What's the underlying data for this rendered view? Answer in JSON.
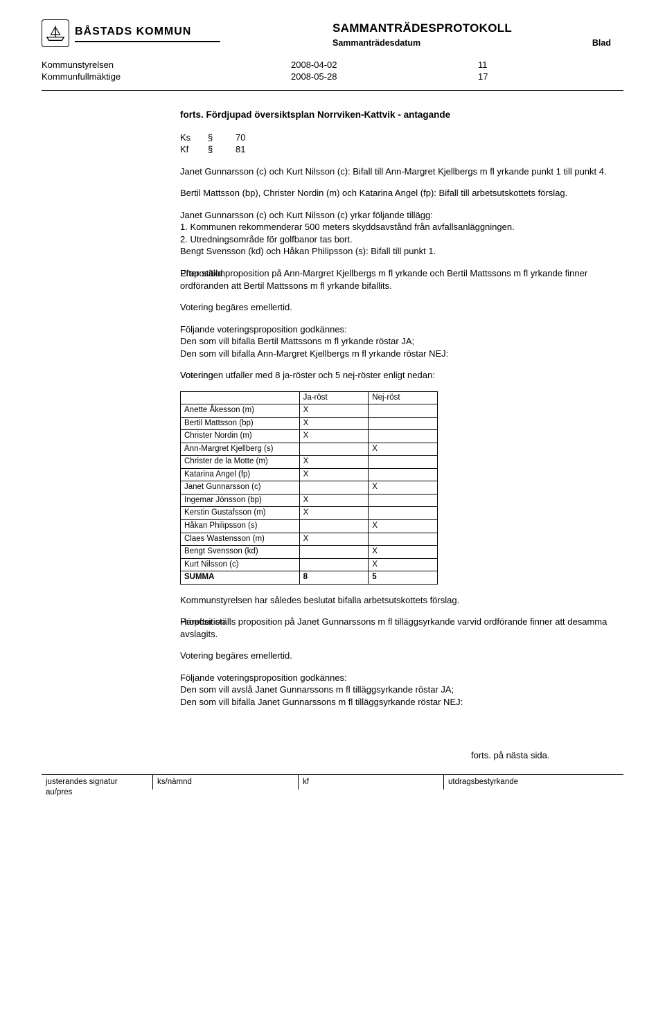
{
  "header": {
    "kommun": "BÅSTADS KOMMUN",
    "protokoll_title": "SAMMANTRÄDESPROTOKOLL",
    "sub_left": "Sammanträdesdatum",
    "sub_right": "Blad"
  },
  "meta": {
    "rows": [
      {
        "left": "Kommunstyrelsen",
        "mid": "2008-04-02",
        "right": "11"
      },
      {
        "left": "Kommunfullmäktige",
        "mid": "2008-05-28",
        "right": "17"
      }
    ]
  },
  "doc": {
    "title": "forts. Fördjupad översiktsplan Norrviken-Kattvik - antagande",
    "ks_label": "Ks",
    "ks_sec": "§",
    "ks_num": "70",
    "kf_label": "Kf",
    "kf_sec": "§",
    "kf_num": "81",
    "p1": "Janet Gunnarsson (c) och Kurt Nilsson (c): Bifall till Ann-Margret Kjellbergs m fl yrkande punkt 1 till punkt 4.",
    "p2": "Bertil Mattsson (bp), Christer Nordin (m) och Katarina Angel (fp): Bifall till arbetsutskottets förslag.",
    "p3a": "Janet Gunnarsson (c) och Kurt Nilsson (c) yrkar följande tillägg:",
    "p3b": "1. Kommunen rekommenderar 500 meters skyddsavstånd från avfallsanläggningen.",
    "p3c": "2. Utredningsområde för golfbanor tas bort.",
    "p3d": "Bengt Svensson (kd) och Håkan Philipsson (s): Bifall till punkt 1.",
    "side_prop1": "Proposition",
    "p4": "Efter ställd proposition på Ann-Margret Kjellbergs m fl yrkande och Bertil Mattssons m fl yrkande finner ordföranden att Bertil Mattssons m fl yrkande bifallits.",
    "p5": "Votering begäres emellertid.",
    "p6a": "Följande voteringsproposition godkännes:",
    "p6b": "Den som vill bifalla Bertil Mattssons m fl yrkande röstar JA;",
    "p6c": "Den som vill bifalla Ann-Margret Kjellbergs m fl yrkande röstar NEJ:",
    "side_votering": "Votering",
    "p7": "Voteringen utfaller med 8 ja-röster och 5 nej-röster enligt nedan:",
    "p8": "Kommunstyrelsen har således beslutat bifalla arbetsutskottets förslag.",
    "side_prop2": "Proposition",
    "p9": "Härefter ställs proposition på Janet Gunnarssons m fl tilläggsyrkande varvid ordförande finner att desamma avslagits.",
    "p10": "Votering begäres emellertid.",
    "p11a": "Följande voteringsproposition godkännes:",
    "p11b": "Den som vill avslå Janet Gunnarssons m fl tilläggsyrkande röstar JA;",
    "p11c": "Den som vill bifalla Janet Gunnarssons m fl tilläggsyrkande röstar NEJ:",
    "forts_next": "forts. på nästa sida."
  },
  "vote_table": {
    "col_ja": "Ja-röst",
    "col_nej": "Nej-röst",
    "rows": [
      {
        "name": "Anette Åkesson (m)",
        "ja": "X",
        "nej": ""
      },
      {
        "name": "Bertil Mattsson (bp)",
        "ja": "X",
        "nej": ""
      },
      {
        "name": "Christer Nordin (m)",
        "ja": "X",
        "nej": ""
      },
      {
        "name": "Ann-Margret Kjellberg (s)",
        "ja": "",
        "nej": "X"
      },
      {
        "name": "Christer de la Motte (m)",
        "ja": "X",
        "nej": ""
      },
      {
        "name": "Katarina Angel (fp)",
        "ja": "X",
        "nej": ""
      },
      {
        "name": "Janet Gunnarsson (c)",
        "ja": "",
        "nej": "X"
      },
      {
        "name": "Ingemar Jönsson (bp)",
        "ja": "X",
        "nej": ""
      },
      {
        "name": "Kerstin Gustafsson (m)",
        "ja": "X",
        "nej": ""
      },
      {
        "name": "Håkan Philipsson (s)",
        "ja": "",
        "nej": "X"
      },
      {
        "name": "Claes Wastensson (m)",
        "ja": "X",
        "nej": ""
      },
      {
        "name": "Bengt Svensson (kd)",
        "ja": "",
        "nej": "X"
      },
      {
        "name": "Kurt Nilsson (c)",
        "ja": "",
        "nej": "X"
      }
    ],
    "sum_label": "SUMMA",
    "sum_ja": "8",
    "sum_nej": "5"
  },
  "footer": {
    "c1a": "justerandes signatur",
    "c1b": "au/pres",
    "c2": "ks/nämnd",
    "c3": "kf",
    "c4": "utdragsbestyrkande"
  }
}
